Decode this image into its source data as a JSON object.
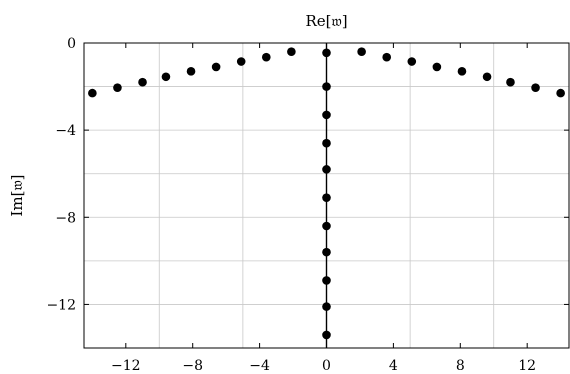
{
  "chart_data": {
    "type": "scatter",
    "title": "",
    "xlabel": "Re[𝔴]",
    "ylabel": "Im[𝔴]",
    "xlim": [
      -14.5,
      14.5
    ],
    "ylim": [
      -14,
      0
    ],
    "xticks": [
      -12,
      -8,
      -4,
      0,
      4,
      8,
      12
    ],
    "xtick_labels": [
      "−12",
      "−8",
      "−4",
      "0",
      "4",
      "8",
      "12"
    ],
    "yticks": [
      0,
      -4,
      -8,
      -12
    ],
    "ytick_labels": [
      "0",
      "−4",
      "−8",
      "−12"
    ],
    "x_gridlines": [
      -10,
      -5,
      0,
      5,
      10
    ],
    "y_gridlines": [
      -2,
      -4,
      -6,
      -8,
      -10,
      -12
    ],
    "grid": true,
    "vertical_line_at_x": 0,
    "points": [
      {
        "x": -14.0,
        "y": -2.3
      },
      {
        "x": -12.5,
        "y": -2.05
      },
      {
        "x": -11.0,
        "y": -1.8
      },
      {
        "x": -9.6,
        "y": -1.55
      },
      {
        "x": -8.1,
        "y": -1.3
      },
      {
        "x": -6.6,
        "y": -1.1
      },
      {
        "x": -5.1,
        "y": -0.85
      },
      {
        "x": -3.6,
        "y": -0.65
      },
      {
        "x": -2.1,
        "y": -0.4
      },
      {
        "x": 2.1,
        "y": -0.4
      },
      {
        "x": 3.6,
        "y": -0.65
      },
      {
        "x": 5.1,
        "y": -0.85
      },
      {
        "x": 6.6,
        "y": -1.1
      },
      {
        "x": 8.1,
        "y": -1.3
      },
      {
        "x": 9.6,
        "y": -1.55
      },
      {
        "x": 11.0,
        "y": -1.8
      },
      {
        "x": 12.5,
        "y": -2.05
      },
      {
        "x": 14.0,
        "y": -2.3
      },
      {
        "x": 0,
        "y": -0.45
      },
      {
        "x": 0,
        "y": -2.0
      },
      {
        "x": 0,
        "y": -3.3
      },
      {
        "x": 0,
        "y": -4.6
      },
      {
        "x": 0,
        "y": -5.8
      },
      {
        "x": 0,
        "y": -7.1
      },
      {
        "x": 0,
        "y": -8.4
      },
      {
        "x": 0,
        "y": -9.6
      },
      {
        "x": 0,
        "y": -10.9
      },
      {
        "x": 0,
        "y": -12.1
      },
      {
        "x": 0,
        "y": -13.4
      }
    ]
  }
}
